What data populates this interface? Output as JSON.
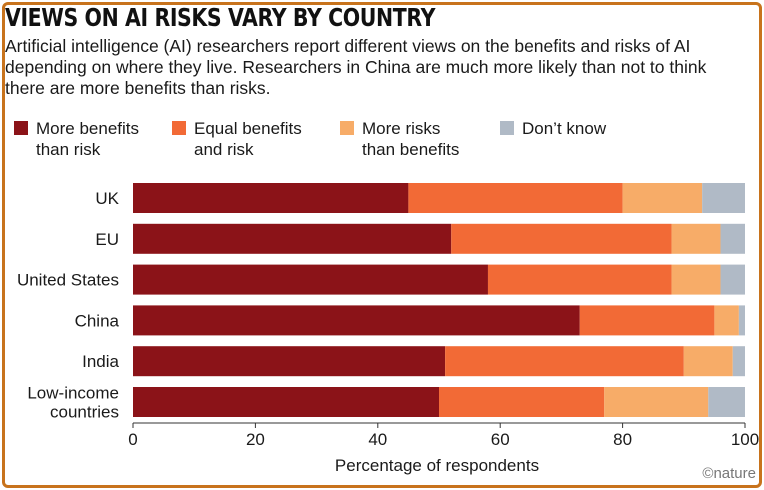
{
  "title": "VIEWS ON AI RISKS VARY BY COUNTRY",
  "subtitle": "Artificial intelligence (AI) researchers report different views on the benefits and risks of AI depending on where they live. Researchers in China are much more likely than not to think there are more benefits than risks.",
  "credit": "©nature",
  "colors": {
    "frame": "#c8731c",
    "more_benefits": "#8b1318",
    "equal": "#f26a36",
    "more_risks": "#f7ac68",
    "dont_know": "#b0bac6"
  },
  "legend": [
    {
      "label": "More benefits\nthan risk",
      "color": "#8b1318"
    },
    {
      "label": "Equal benefits\nand risk",
      "color": "#f26a36"
    },
    {
      "label": "More risks\nthan benefits",
      "color": "#f7ac68"
    },
    {
      "label": "Don’t know",
      "color": "#b0bac6"
    }
  ],
  "chart_data": {
    "type": "bar",
    "orientation": "horizontal",
    "stacked": true,
    "title": "VIEWS ON AI RISKS VARY BY COUNTRY",
    "xlabel": "Percentage of respondents",
    "ylabel": "",
    "xlim": [
      0,
      100
    ],
    "xticks": [
      0,
      20,
      40,
      60,
      80,
      100
    ],
    "grid": false,
    "legend_position": "top",
    "categories": [
      "UK",
      "EU",
      "United States",
      "China",
      "India",
      "Low-income\ncountries"
    ],
    "series": [
      {
        "name": "More benefits than risk",
        "color": "#8b1318",
        "values": [
          45,
          52,
          58,
          73,
          51,
          50
        ]
      },
      {
        "name": "Equal benefits and risk",
        "color": "#f26a36",
        "values": [
          35,
          36,
          30,
          22,
          39,
          27
        ]
      },
      {
        "name": "More risks than benefits",
        "color": "#f7ac68",
        "values": [
          13,
          8,
          8,
          4,
          8,
          17
        ]
      },
      {
        "name": "Don’t know",
        "color": "#b0bac6",
        "values": [
          7,
          4,
          4,
          1,
          2,
          6
        ]
      }
    ]
  }
}
